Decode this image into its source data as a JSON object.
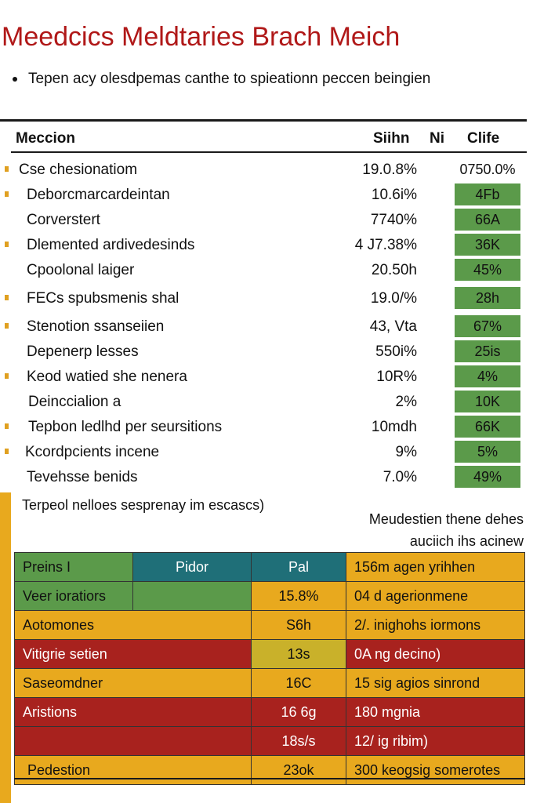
{
  "title": "Meedcics Meldtaries  Brach Meich",
  "bullet": "Tepen acy olesdpemas canthe to spieationn peccen beingien",
  "table": {
    "headers": [
      "Meccion",
      "Siihn",
      "Ni",
      "Clife"
    ],
    "rows": [
      {
        "label": "Cse chesionatiom",
        "v1": "19.0.8%",
        "v2": "0750.0%",
        "mark": true,
        "indent": 24,
        "v2_plain": true
      },
      {
        "label": "Deborcmarcardeintan",
        "v1": "10.6i%",
        "v2": "4Fb",
        "mark": true,
        "indent": 34
      },
      {
        "label": "Corverstert",
        "v1": "7740%",
        "v2": "66A",
        "mark": false,
        "indent": 34
      },
      {
        "label": "Dlemented ardivedesinds",
        "v1": "4 J7.38%",
        "v2": "36K",
        "mark": true,
        "indent": 34
      },
      {
        "label": "Cpoolonal laiger",
        "v1": "20.50h",
        "v2": "45%",
        "mark": false,
        "indent": 34
      },
      {
        "label": "FECs spubsmenis shal",
        "v1": "19.0/%",
        "v2": "28h",
        "mark": true,
        "indent": 34
      },
      {
        "label": "Stenotion ssanseiien",
        "v1": "43, Vta",
        "v2": "67%",
        "mark": true,
        "indent": 34
      },
      {
        "label": "Depenerp lesses",
        "v1": "550i%",
        "v2": "25is",
        "mark": false,
        "indent": 34
      },
      {
        "label": "Keod watied she nenera",
        "v1": "10R%",
        "v2": "4%",
        "mark": true,
        "indent": 34
      },
      {
        "label": "Deinccialion a",
        "v1": "2%",
        "v2": "10K",
        "mark": false,
        "indent": 36
      },
      {
        "label": "Tepbon ledlhd per seursitions",
        "v1": "10mdh",
        "v2": "66K",
        "mark": true,
        "indent": 36
      },
      {
        "label": "Kcordpcients incene",
        "v1": "9%",
        "v2": "5%",
        "mark": true,
        "indent": 32
      },
      {
        "label": "Tevehsse benids",
        "v1": "7.0%",
        "v2": "49%",
        "mark": false,
        "indent": 34
      }
    ]
  },
  "note": "Terpeol nelloes sesprenay im escascs)",
  "side_note": [
    "Meudestien thene dehes",
    "auciich ihs acinew"
  ],
  "bottom_table": {
    "rows": [
      {
        "c1": "Preins I",
        "c2": "Pidor",
        "c3": "Pal",
        "c4": "156m agen yrihhen"
      },
      {
        "c1": "Veer ioratiors",
        "c2": "",
        "c3": "15.8%",
        "c4": "04 d agerionmene"
      },
      {
        "c1": "Aotomones",
        "c2": "",
        "c3": "S6h",
        "c4": "2/. inighohs iormons"
      },
      {
        "c1": "Vitigrie setien",
        "c2": "",
        "c3": "13s",
        "c4": "0A ng decino)"
      },
      {
        "c1": "Saseomdner",
        "c2": "",
        "c3": "16C",
        "c4": "15 sig agios sinrond"
      },
      {
        "c1": "Aristions",
        "c2": "",
        "c3": "16 6g",
        "c4": "180 mgnia"
      },
      {
        "c1": "",
        "c2": "",
        "c3": "18s/s",
        "c4": "12/ ig ribim)"
      },
      {
        "c1": "Pedestion",
        "c2": "",
        "c3": "23ok",
        "c4": "300 keogsig somerotes"
      }
    ]
  }
}
